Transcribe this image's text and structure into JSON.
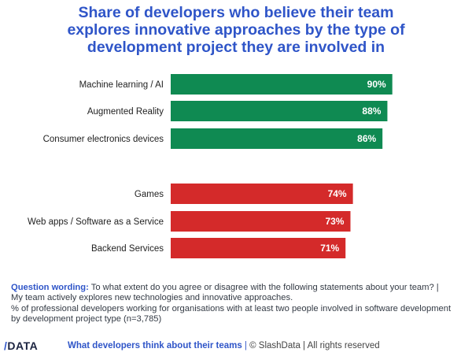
{
  "title_lines": [
    "Share of developers who believe their team",
    "explores innovative approaches by the type of",
    "development project they are involved in"
  ],
  "chart_data": {
    "type": "bar",
    "orientation": "horizontal",
    "title": "Share of developers who believe their team explores innovative approaches by the type of development project they are involved in",
    "categories": [
      "Machine learning / AI",
      "Augmented Reality",
      "Consumer electronics devices",
      "Games",
      "Web apps / Software as a Service",
      "Backend Services"
    ],
    "values": [
      90,
      88,
      86,
      74,
      73,
      71
    ],
    "data_labels": [
      "90%",
      "88%",
      "86%",
      "74%",
      "73%",
      "71%"
    ],
    "groups": [
      {
        "color": "#0f8a52",
        "indices": [
          0,
          1,
          2
        ]
      },
      {
        "color": "#d42a2a",
        "indices": [
          3,
          4,
          5
        ]
      }
    ],
    "xlim": [
      0,
      100
    ],
    "grid": false,
    "legend": "none"
  },
  "footnote": {
    "label": "Question wording:",
    "text": " To what extent do you agree or disagree with the following statements about your team? | My team actively explores new technologies and innovative approaches.",
    "base": "% of professional developers working for organisations with at least two people involved in software development by development project type (n=3,785)"
  },
  "footer": {
    "logo_slash": "/",
    "logo_text": "DATA",
    "link": "What developers think about their teams",
    "separator": " | ",
    "copyright": "© SlashData | All rights reserved"
  }
}
